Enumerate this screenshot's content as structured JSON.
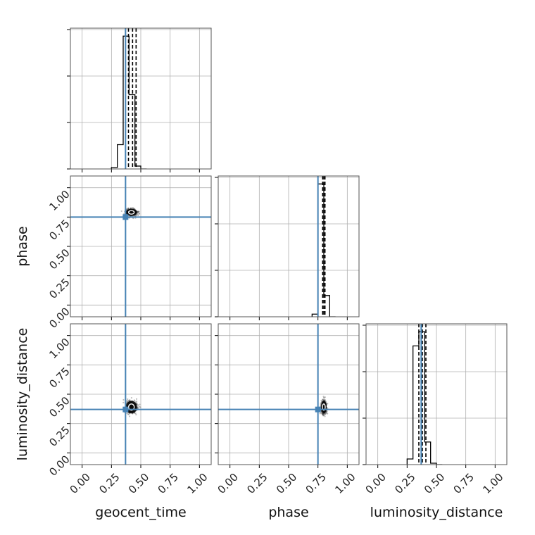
{
  "chart_data": {
    "type": "corner",
    "parameters": [
      "geocent_time",
      "phase",
      "luminosity_distance"
    ],
    "axis_range": [
      -0.1,
      1.1
    ],
    "tick_values": [
      0.0,
      0.25,
      0.5,
      0.75,
      1.0
    ],
    "tick_labels": [
      "0.00",
      "0.25",
      "0.50",
      "0.75",
      "1.00"
    ],
    "truths": [
      0.37,
      0.75,
      0.37
    ],
    "quantiles": [
      [
        0.395,
        0.43,
        0.46
      ],
      [
        0.79,
        0.8,
        0.81
      ],
      [
        0.35,
        0.38,
        0.41
      ]
    ],
    "histograms": [
      {
        "bin_edges": [
          0.25,
          0.3,
          0.35,
          0.4,
          0.45,
          0.5,
          0.55
        ],
        "values": [
          0.01,
          0.17,
          0.93,
          0.52,
          0.02,
          0.0
        ]
      },
      {
        "bin_edges": [
          0.7,
          0.75,
          0.8,
          0.85,
          0.9
        ],
        "values": [
          0.02,
          1.0,
          0.16,
          0.0
        ]
      },
      {
        "bin_edges": [
          0.25,
          0.3,
          0.35,
          0.4,
          0.45,
          0.5,
          0.55
        ],
        "values": [
          0.04,
          0.84,
          0.94,
          0.16,
          0.01,
          0.0
        ]
      }
    ],
    "scatter_centers": [
      {
        "panel": "phase_vs_geocent_time",
        "x": 0.42,
        "y": 0.79,
        "sx": 0.04,
        "sy": 0.025
      },
      {
        "panel": "luminosity_distance_vs_geocent_time",
        "x": 0.42,
        "y": 0.39,
        "sx": 0.04,
        "sy": 0.045
      },
      {
        "panel": "luminosity_distance_vs_phase",
        "x": 0.8,
        "y": 0.39,
        "sx": 0.02,
        "sy": 0.045
      }
    ],
    "grid": true,
    "colors": {
      "truth": "#4682b4",
      "hist": "#000000",
      "grid": "#b0b0b0",
      "points": "#444444"
    }
  }
}
